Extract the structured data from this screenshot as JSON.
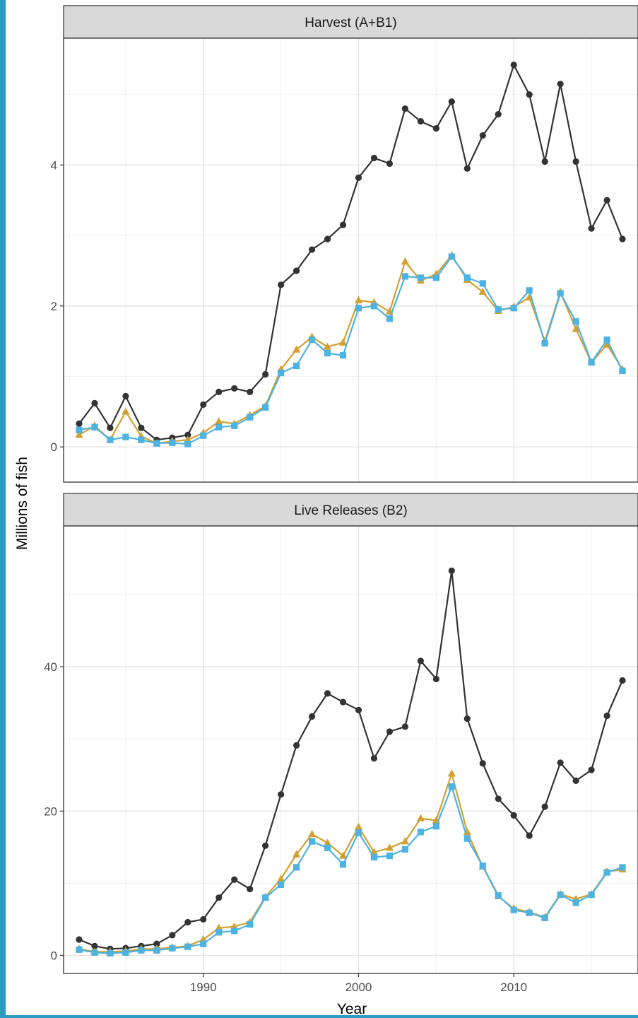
{
  "chart_data": [
    {
      "type": "line",
      "panel_title": "Harvest (A+B1)",
      "xlim": [
        1981,
        2018
      ],
      "ylim": [
        -0.5,
        5.8
      ],
      "y_ticks": [
        0,
        2,
        4
      ],
      "x_ticks": [
        1990,
        2000,
        2010
      ],
      "grid": true,
      "x": [
        1982,
        1983,
        1984,
        1985,
        1986,
        1987,
        1988,
        1989,
        1990,
        1991,
        1992,
        1993,
        1994,
        1995,
        1996,
        1997,
        1998,
        1999,
        2000,
        2001,
        2002,
        2003,
        2004,
        2005,
        2006,
        2007,
        2008,
        2009,
        2010,
        2011,
        2012,
        2013,
        2014,
        2015,
        2016,
        2017
      ],
      "series": [
        {
          "color": "#333333",
          "marker": "circle",
          "values": [
            0.33,
            0.62,
            0.27,
            0.72,
            0.27,
            0.1,
            0.13,
            0.17,
            0.6,
            0.78,
            0.83,
            0.78,
            1.03,
            2.3,
            2.5,
            2.8,
            2.95,
            3.15,
            3.82,
            4.1,
            4.02,
            4.8,
            4.62,
            4.52,
            4.9,
            3.95,
            4.42,
            4.72,
            5.42,
            5.0,
            4.05,
            5.15,
            4.05,
            3.1,
            3.5,
            2.95
          ]
        },
        {
          "color": "#d4a030",
          "marker": "triangle",
          "values": [
            0.17,
            0.3,
            0.1,
            0.5,
            0.15,
            0.05,
            0.08,
            0.1,
            0.2,
            0.36,
            0.33,
            0.45,
            0.58,
            1.1,
            1.38,
            1.56,
            1.42,
            1.48,
            2.08,
            2.05,
            1.92,
            2.63,
            2.36,
            2.45,
            2.72,
            2.37,
            2.2,
            1.93,
            1.99,
            2.12,
            1.5,
            2.2,
            1.67,
            1.2,
            1.45,
            1.1
          ]
        },
        {
          "color": "#4db3e3",
          "marker": "square",
          "values": [
            0.24,
            0.28,
            0.1,
            0.14,
            0.1,
            0.05,
            0.06,
            0.04,
            0.16,
            0.28,
            0.3,
            0.42,
            0.56,
            1.05,
            1.15,
            1.52,
            1.33,
            1.3,
            1.97,
            2.0,
            1.82,
            2.42,
            2.4,
            2.4,
            2.7,
            2.4,
            2.32,
            1.95,
            1.97,
            2.22,
            1.47,
            2.18,
            1.78,
            1.2,
            1.52,
            1.08
          ]
        }
      ]
    },
    {
      "type": "line",
      "panel_title": "Live Releases (B2)",
      "xlim": [
        1981,
        2018
      ],
      "ylim": [
        -2.5,
        59.5
      ],
      "y_ticks": [
        0,
        20,
        40
      ],
      "x_ticks": [
        1990,
        2000,
        2010
      ],
      "grid": true,
      "x": [
        1982,
        1983,
        1984,
        1985,
        1986,
        1987,
        1988,
        1989,
        1990,
        1991,
        1992,
        1993,
        1994,
        1995,
        1996,
        1997,
        1998,
        1999,
        2000,
        2001,
        2002,
        2003,
        2004,
        2005,
        2006,
        2007,
        2008,
        2009,
        2010,
        2011,
        2012,
        2013,
        2014,
        2015,
        2016,
        2017
      ],
      "series": [
        {
          "color": "#333333",
          "marker": "circle",
          "values": [
            2.2,
            1.3,
            0.9,
            1.0,
            1.3,
            1.6,
            2.8,
            4.6,
            5.0,
            8.0,
            10.5,
            9.2,
            15.2,
            22.3,
            29.1,
            33.1,
            36.3,
            35.1,
            34.0,
            27.3,
            31.0,
            31.7,
            40.8,
            38.3,
            53.3,
            32.8,
            26.6,
            21.7,
            19.4,
            16.6,
            20.6,
            26.7,
            24.2,
            25.7,
            33.2,
            38.1
          ]
        },
        {
          "color": "#d4a030",
          "marker": "triangle",
          "values": [
            0.9,
            0.5,
            0.5,
            0.6,
            0.9,
            0.9,
            1.1,
            1.3,
            2.2,
            3.8,
            4.0,
            4.6,
            8.1,
            10.6,
            14.0,
            16.8,
            15.6,
            13.8,
            17.8,
            14.3,
            14.9,
            15.8,
            19.0,
            18.7,
            25.2,
            17.1,
            12.3,
            8.2,
            6.5,
            6.0,
            5.3,
            8.5,
            7.8,
            8.5,
            11.6,
            11.9
          ]
        },
        {
          "color": "#4db3e3",
          "marker": "square",
          "values": [
            0.8,
            0.4,
            0.3,
            0.4,
            0.7,
            0.7,
            1.0,
            1.2,
            1.6,
            3.2,
            3.4,
            4.3,
            8.0,
            9.8,
            12.2,
            15.8,
            14.9,
            12.6,
            17.0,
            13.6,
            13.8,
            14.7,
            17.1,
            17.9,
            23.4,
            16.2,
            12.4,
            8.3,
            6.3,
            5.9,
            5.2,
            8.4,
            7.3,
            8.4,
            11.5,
            12.2
          ]
        }
      ]
    }
  ],
  "labels": {
    "xlabel": "Year",
    "ylabel": "Millions of fish"
  }
}
